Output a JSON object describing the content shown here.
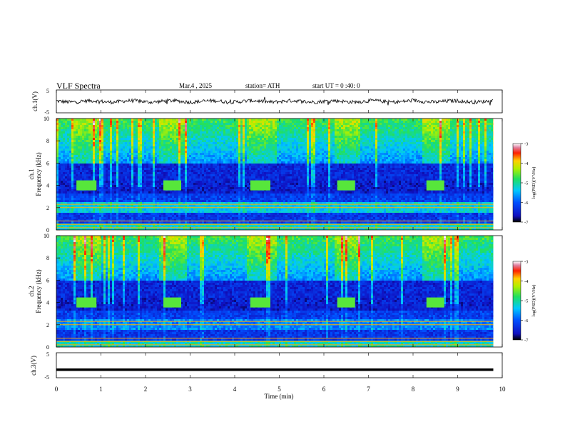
{
  "header": {
    "title": "VLF Spectra",
    "date": "Mar.4 , 2025",
    "station": "station= ATH",
    "start_ut": "start UT = 0 :40: 0"
  },
  "chart_data": [
    {
      "type": "line",
      "panel": "ch1-waveform",
      "ylabel": "ch.1(V)",
      "ylim": [
        -5,
        5
      ],
      "yticks": [
        "5",
        "-5"
      ],
      "x_range_min": [
        0,
        9.8
      ],
      "description_values": "noisy waveform oscillating around ~0 V"
    },
    {
      "type": "heatmap",
      "panel": "ch1-spectrogram",
      "ylabel_line1": "ch.1",
      "ylabel_line2": "Frequency (kHz)",
      "ylim": [
        0,
        10
      ],
      "yticks": [
        "0",
        "2",
        "4",
        "6",
        "8",
        "10"
      ],
      "colorbar_label": "log(PSD)(V²/Hz)",
      "colorbar_ticks": [
        "-3",
        "-4",
        "-5",
        "-6",
        "-7"
      ],
      "colorbar_range": [
        -7,
        -3
      ],
      "transmitter_bursts_min": [
        [
          0.45,
          0.9
        ],
        [
          2.4,
          2.8
        ],
        [
          4.35,
          4.8
        ],
        [
          6.3,
          6.7
        ],
        [
          8.3,
          8.7
        ]
      ],
      "burst_freq_khz": 4.0
    },
    {
      "type": "heatmap",
      "panel": "ch2-spectrogram",
      "ylabel_line1": "ch.2",
      "ylabel_line2": "Frequency (kHz)",
      "ylim": [
        0,
        10
      ],
      "yticks": [
        "0",
        "2",
        "4",
        "6",
        "8",
        "10"
      ],
      "colorbar_label": "log(PSD)(V²/Hz)",
      "colorbar_ticks": [
        "-3",
        "-4",
        "-5",
        "-6",
        "-7"
      ],
      "colorbar_range": [
        -7,
        -3
      ],
      "transmitter_bursts_min": [
        [
          0.45,
          0.9
        ],
        [
          2.4,
          2.8
        ],
        [
          4.35,
          4.8
        ],
        [
          6.3,
          6.7
        ],
        [
          8.3,
          8.7
        ]
      ],
      "burst_freq_khz": 4.0
    },
    {
      "type": "line",
      "panel": "ch3-waveform",
      "ylabel": "ch.3(V)",
      "ylim": [
        -5,
        5
      ],
      "yticks": [
        "5",
        "-5"
      ],
      "x": [
        0,
        9.8
      ],
      "y": [
        -1.8,
        -1.8
      ]
    }
  ],
  "xaxis": {
    "label": "Time (min)",
    "range": [
      0,
      10
    ],
    "ticks": [
      "0",
      "1",
      "2",
      "3",
      "4",
      "5",
      "6",
      "7",
      "8",
      "9",
      "10"
    ]
  },
  "colors": {
    "waveform": "#000000",
    "background": "#ffffff"
  }
}
